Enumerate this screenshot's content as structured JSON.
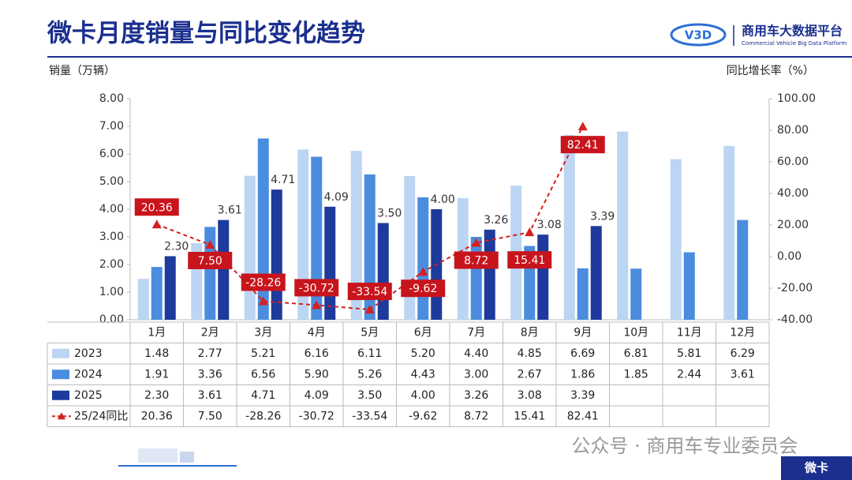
{
  "header": {
    "title": "微卡月度销量与同比变化趋势",
    "logo_text": "商用车大数据平台",
    "logo_subtext": "Commercial Vehicle Big Data Platform"
  },
  "chart_data": {
    "type": "bar",
    "y_label": "销量（万辆）",
    "y2_label": "同比增长率（%）",
    "categories": [
      "1月",
      "2月",
      "3月",
      "4月",
      "5月",
      "6月",
      "7月",
      "8月",
      "9月",
      "10月",
      "11月",
      "12月"
    ],
    "ylim": [
      0,
      8
    ],
    "yticks": [
      {
        "value": 0,
        "label": "0.00"
      },
      {
        "value": 1,
        "label": "1.00"
      },
      {
        "value": 2,
        "label": "2.00"
      },
      {
        "value": 3,
        "label": "3.00"
      },
      {
        "value": 4,
        "label": "4.00"
      },
      {
        "value": 5,
        "label": "5.00"
      },
      {
        "value": 6,
        "label": "6.00"
      },
      {
        "value": 7,
        "label": "7.00"
      },
      {
        "value": 8,
        "label": "8.00"
      }
    ],
    "y2lim": [
      -40,
      100
    ],
    "y2ticks": [
      {
        "value": -40,
        "label": "-40.00"
      },
      {
        "value": -20,
        "label": "-20.00"
      },
      {
        "value": 0,
        "label": "0.00"
      },
      {
        "value": 20,
        "label": "20.00"
      },
      {
        "value": 40,
        "label": "40.00"
      },
      {
        "value": 60,
        "label": "60.00"
      },
      {
        "value": 80,
        "label": "80.00"
      },
      {
        "value": 100,
        "label": "100.00"
      }
    ],
    "grid": false,
    "series": [
      {
        "name": "2023",
        "type": "bar",
        "color": "#bcd5f3",
        "values": [
          1.48,
          2.77,
          5.21,
          6.16,
          6.11,
          5.2,
          4.4,
          4.85,
          6.69,
          6.81,
          5.81,
          6.29
        ],
        "value_labels": [
          "1.48",
          "2.77",
          "5.21",
          "6.16",
          "6.11",
          "5.20",
          "4.40",
          "4.85",
          "6.69",
          "6.81",
          "5.81",
          "6.29"
        ]
      },
      {
        "name": "2024",
        "type": "bar",
        "color": "#4a8ddf",
        "values": [
          1.91,
          3.36,
          6.56,
          5.9,
          5.26,
          4.43,
          3,
          2.67,
          1.86,
          1.85,
          2.44,
          3.61
        ],
        "value_labels": [
          "1.91",
          "3.36",
          "6.56",
          "5.90",
          "5.26",
          "4.43",
          "3.00",
          "2.67",
          "1.86",
          "1.85",
          "2.44",
          "3.61"
        ]
      },
      {
        "name": "2025",
        "type": "bar",
        "color": "#1e3a9c",
        "values": [
          2.3,
          3.61,
          4.71,
          4.09,
          3.5,
          4,
          3.26,
          3.08,
          3.39,
          null,
          null,
          null
        ],
        "value_labels": [
          "2.30",
          "3.61",
          "4.71",
          "4.09",
          "3.50",
          "4.00",
          "3.26",
          "3.08",
          "3.39",
          null,
          null,
          null
        ]
      },
      {
        "name": "25/24同比",
        "type": "line",
        "axis": "y2",
        "color": "#d42020",
        "values": [
          20.36,
          7.5,
          -28.26,
          -30.72,
          -33.54,
          -9.62,
          8.72,
          15.41,
          82.41,
          null,
          null,
          null
        ],
        "value_labels": [
          "20.36",
          "7.50",
          "-28.26",
          "-30.72",
          "-33.54",
          "-9.62",
          "8.72",
          "15.41",
          "82.41",
          null,
          null,
          null
        ]
      }
    ]
  },
  "footer": {
    "watermark": "公众号 · 商用车专业委员会",
    "tab": "微卡"
  }
}
